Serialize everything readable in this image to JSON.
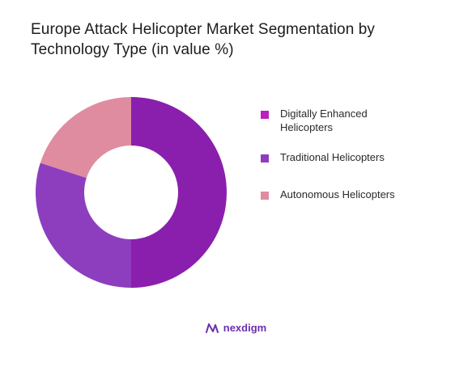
{
  "chart_data": {
    "type": "pie",
    "title": "Europe Attack Helicopter Market Segmentation by Technology Type (in value %)",
    "categories": [
      "Digitally Enhanced Helicopters",
      "Traditional Helicopters",
      "Autonomous Helicopters"
    ],
    "values": [
      50,
      30,
      20
    ],
    "colors": [
      "#8a1fad",
      "#8d3ebf",
      "#e08ca0"
    ],
    "legend_colors": [
      "#bb1fbf",
      "#8d3ebf",
      "#e08ca0"
    ],
    "donut": true,
    "legend": "right"
  },
  "brand": {
    "name": "nexdigm",
    "logo_icon": "nexdigm-logo-icon",
    "color": "#6a2fb0"
  }
}
